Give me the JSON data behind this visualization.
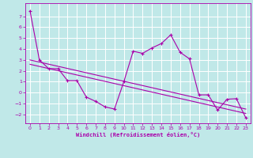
{
  "xlabel": "Windchill (Refroidissement éolien,°C)",
  "xlim": [
    -0.5,
    23.5
  ],
  "ylim": [
    -2.8,
    8.2
  ],
  "yticks": [
    -2,
    -1,
    0,
    1,
    2,
    3,
    4,
    5,
    6,
    7
  ],
  "xticks": [
    0,
    1,
    2,
    3,
    4,
    5,
    6,
    7,
    8,
    9,
    10,
    11,
    12,
    13,
    14,
    15,
    16,
    17,
    18,
    19,
    20,
    21,
    22,
    23
  ],
  "bg_color": "#c0e8e8",
  "line_color": "#aa00aa",
  "grid_color": "#ffffff",
  "curve1_x": [
    0,
    1,
    2,
    3,
    4,
    5,
    6,
    7,
    8,
    9,
    10,
    11,
    12,
    13,
    14,
    15,
    16,
    17,
    18,
    19,
    20,
    21,
    22,
    23
  ],
  "curve1_y": [
    7.5,
    3.0,
    2.2,
    2.2,
    1.1,
    1.1,
    -0.4,
    -0.8,
    -1.3,
    -1.5,
    1.0,
    3.8,
    3.6,
    4.1,
    4.5,
    5.3,
    3.7,
    3.1,
    -0.2,
    -0.2,
    -1.6,
    -0.6,
    -0.55,
    -2.3
  ],
  "trend_x": [
    0,
    23
  ],
  "trend_y": [
    3.0,
    -1.5
  ],
  "trend2_x": [
    0,
    23
  ],
  "trend2_y": [
    2.6,
    -1.9
  ]
}
